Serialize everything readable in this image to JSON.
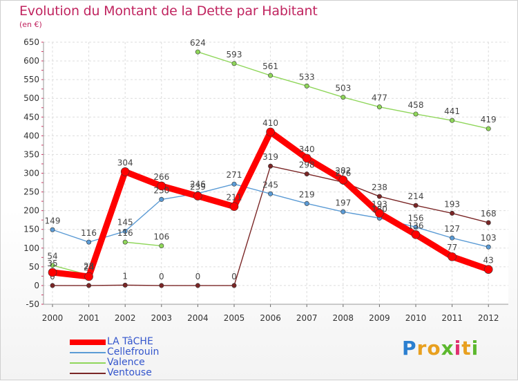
{
  "chart_data": {
    "type": "line",
    "title": "Evolution du Montant de la Dette par Habitant",
    "ylabel": "(en €)",
    "xlabel": "",
    "ylim": [
      -50,
      650
    ],
    "yticks": [
      -50,
      0,
      50,
      100,
      150,
      200,
      250,
      300,
      350,
      400,
      450,
      500,
      550,
      600,
      650
    ],
    "categories": [
      "2000",
      "2001",
      "2002",
      "2003",
      "2004",
      "2005",
      "2006",
      "2007",
      "2008",
      "2009",
      "2010",
      "2011",
      "2012"
    ],
    "grid": true,
    "legend_position": "bottom-left",
    "series": [
      {
        "name": "Ventouse",
        "color": "#7a2626",
        "values": [
          0,
          0,
          1,
          0,
          0,
          0,
          319,
          298,
          276,
          238,
          214,
          193,
          168
        ]
      },
      {
        "name": "Cellefrouin",
        "color": "#5b9bd5",
        "values": [
          149,
          116,
          145,
          230,
          246,
          271,
          245,
          219,
          197,
          180,
          156,
          127,
          103
        ]
      },
      {
        "name": "Valence",
        "color": "#8fd65a",
        "values": [
          54,
          28,
          null,
          null,
          624,
          593,
          561,
          533,
          503,
          477,
          458,
          441,
          419
        ]
      },
      {
        "name": "LA TâCHE",
        "color": "#ff0000",
        "values": [
          35,
          24,
          304,
          266,
          239,
          211,
          410,
          340,
          282,
          193,
          136,
          77,
          43
        ]
      }
    ],
    "extra_segments": [
      {
        "name": "Valence",
        "color": "#8fd65a",
        "values": [
          null,
          null,
          116,
          106,
          null,
          null,
          null,
          null,
          null,
          null,
          null,
          null,
          null
        ]
      }
    ]
  },
  "legend": {
    "items": [
      {
        "label": "LA TâCHE",
        "color": "#ff0000"
      },
      {
        "label": "Cellefrouin",
        "color": "#5b9bd5"
      },
      {
        "label": "Valence",
        "color": "#8fd65a"
      },
      {
        "label": "Ventouse",
        "color": "#7a2626"
      }
    ]
  },
  "logo": {
    "letters": [
      "P",
      "r",
      "o",
      "x",
      "i",
      "t",
      "i"
    ],
    "colors": [
      "#2b7fd0",
      "#e8a020",
      "#e8a020",
      "#5cb82e",
      "#e03070",
      "#e8a020",
      "#5cb82e"
    ]
  }
}
